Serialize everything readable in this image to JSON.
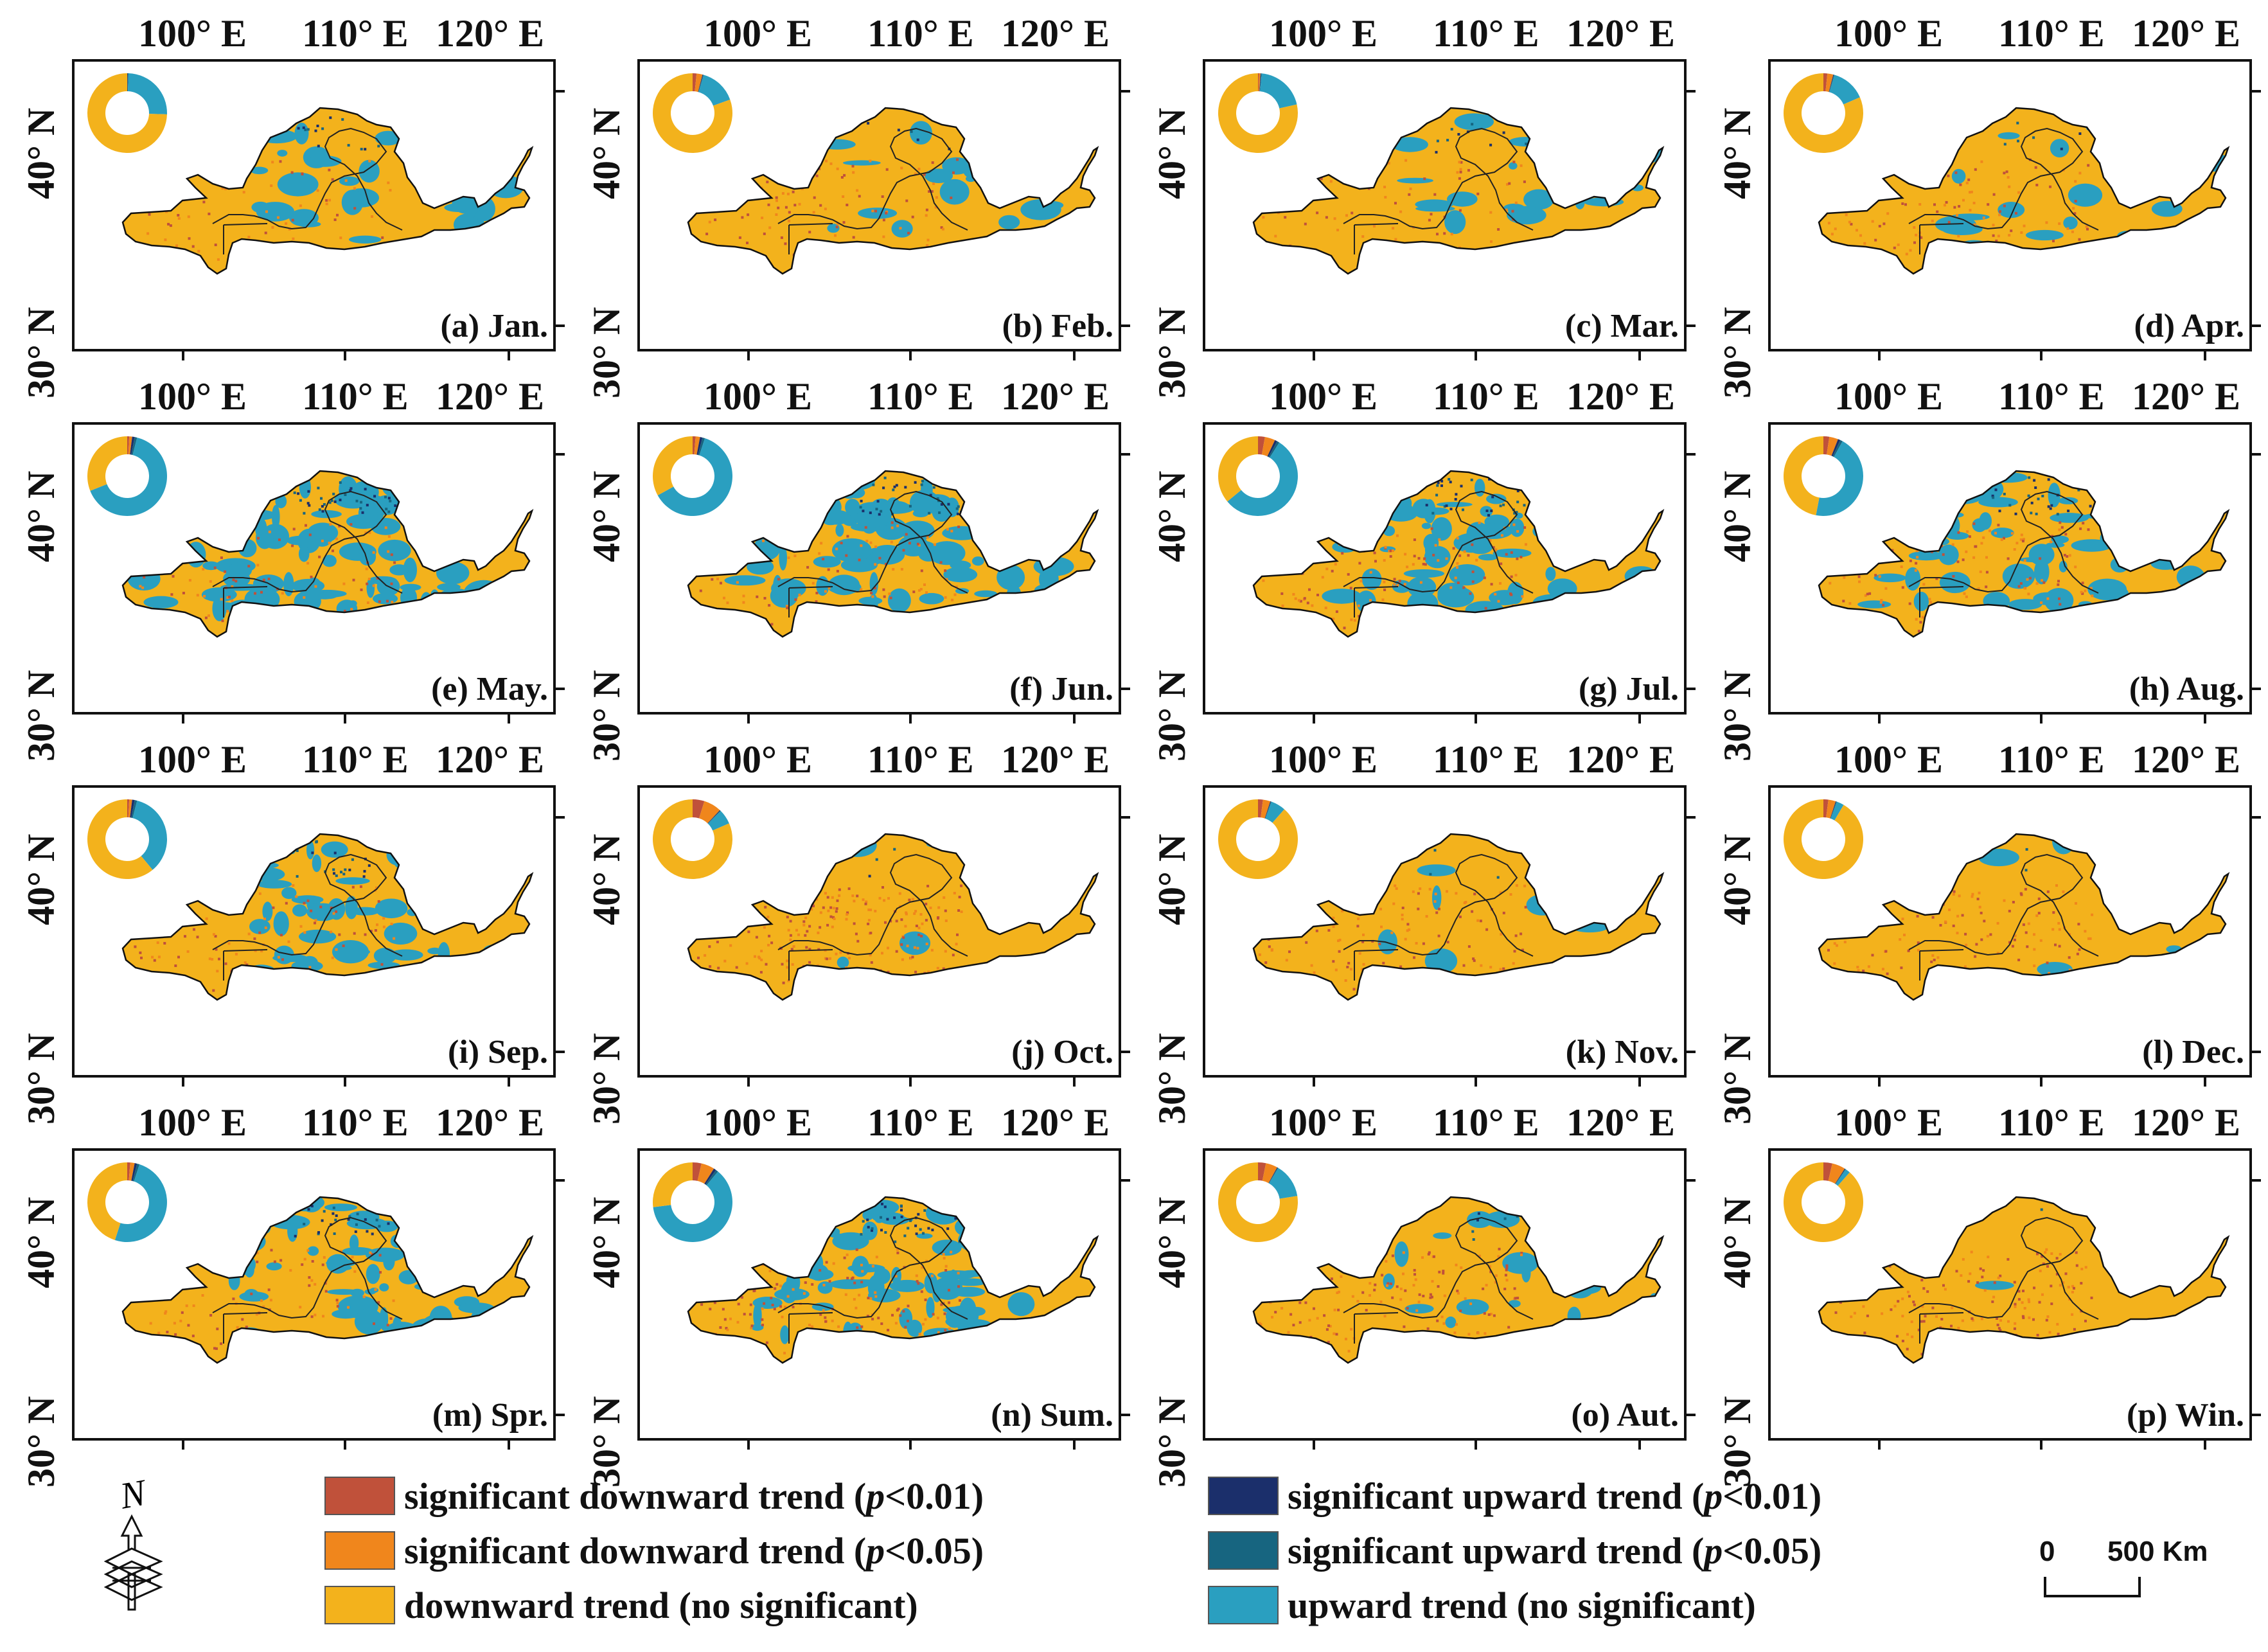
{
  "axis_labels": {
    "lon": [
      "100° E",
      "110° E",
      "120° E"
    ],
    "lat": [
      "40° N",
      "30° N"
    ]
  },
  "colors": {
    "sig_down_001": "#c0513a",
    "sig_down_005": "#f0861c",
    "down_ns": "#f3b21c",
    "sig_up_001": "#1b2f6b",
    "sig_up_005": "#176580",
    "up_ns": "#2a9fc0"
  },
  "panels": [
    {
      "title": "(a) Jan.",
      "up_share": 0.25,
      "down_sig": 0.0
    },
    {
      "title": "(b) Feb.",
      "up_share": 0.15,
      "down_sig": 0.04
    },
    {
      "title": "(c) Mar.",
      "up_share": 0.2,
      "down_sig": 0.01
    },
    {
      "title": "(d) Apr.",
      "up_share": 0.14,
      "down_sig": 0.04
    },
    {
      "title": "(e) May.",
      "up_share": 0.65,
      "down_sig": 0.02
    },
    {
      "title": "(f) Jun.",
      "up_share": 0.62,
      "down_sig": 0.03
    },
    {
      "title": "(g) Jul.",
      "up_share": 0.55,
      "down_sig": 0.07
    },
    {
      "title": "(h) Aug.",
      "up_share": 0.45,
      "down_sig": 0.06
    },
    {
      "title": "(i) Sep.",
      "up_share": 0.35,
      "down_sig": 0.02
    },
    {
      "title": "(j) Oct.",
      "up_share": 0.06,
      "down_sig": 0.12
    },
    {
      "title": "(k) Nov.",
      "up_share": 0.06,
      "down_sig": 0.05
    },
    {
      "title": "(l) Dec.",
      "up_share": 0.03,
      "down_sig": 0.05
    },
    {
      "title": "(m) Spr.",
      "up_share": 0.5,
      "down_sig": 0.03
    },
    {
      "title": "(n) Sum.",
      "up_share": 0.62,
      "down_sig": 0.09
    },
    {
      "title": "(o) Aut.",
      "up_share": 0.14,
      "down_sig": 0.08
    },
    {
      "title": "(p) Win.",
      "up_share": 0.02,
      "down_sig": 0.09
    }
  ],
  "legend": {
    "left": [
      {
        "label": "significant downward trend (",
        "p": "p",
        "tail": "<0.01)",
        "color": "#c0513a"
      },
      {
        "label": "significant downward trend (",
        "p": "p",
        "tail": "<0.05)",
        "color": "#f0861c"
      },
      {
        "label": "downward trend (no significant)",
        "p": "",
        "tail": "",
        "color": "#f3b21c"
      }
    ],
    "right": [
      {
        "label": "significant upward trend (",
        "p": "p",
        "tail": "<0.01)",
        "color": "#1b2f6b"
      },
      {
        "label": "significant upward trend (",
        "p": "p",
        "tail": "<0.05)",
        "color": "#176580"
      },
      {
        "label": "upward trend (no significant)",
        "p": "",
        "tail": "",
        "color": "#2a9fc0"
      }
    ]
  },
  "scale_bar": {
    "zero": "0",
    "label": "500 Km"
  },
  "north_arrow": {
    "label": "N"
  }
}
